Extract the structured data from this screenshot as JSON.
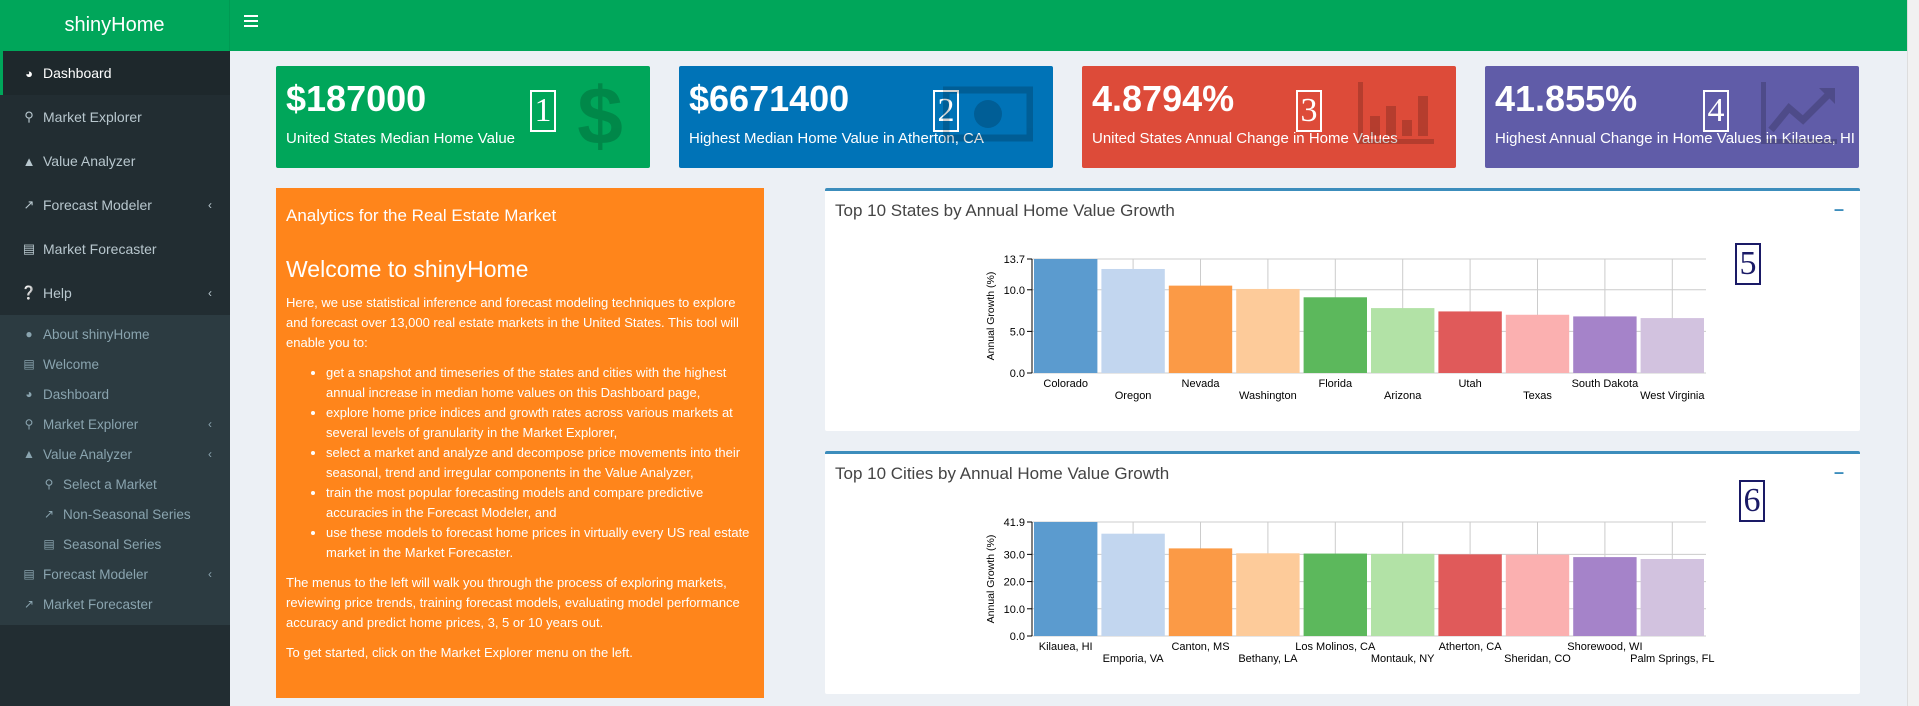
{
  "app": {
    "title": "shinyHome"
  },
  "sidebar": {
    "items": [
      {
        "label": "Dashboard",
        "icon": "dashboard-icon"
      },
      {
        "label": "Market Explorer",
        "icon": "search-icon"
      },
      {
        "label": "Value Analyzer",
        "icon": "area-chart-icon"
      },
      {
        "label": "Forecast Modeler",
        "icon": "line-chart-icon"
      },
      {
        "label": "Market Forecaster",
        "icon": "bar-chart-icon"
      },
      {
        "label": "Help",
        "icon": "question-circle-icon"
      }
    ],
    "help_items": [
      {
        "label": "About shinyHome",
        "icon": "user-icon"
      },
      {
        "label": "Welcome",
        "icon": "book-icon"
      },
      {
        "label": "Dashboard",
        "icon": "dashboard-icon"
      },
      {
        "label": "Market Explorer",
        "icon": "search-icon"
      },
      {
        "label": "Value Analyzer",
        "icon": "area-chart-icon"
      }
    ],
    "value_analyzer_items": [
      {
        "label": "Select a Market",
        "icon": "map-marker-icon"
      },
      {
        "label": "Non-Seasonal Series",
        "icon": "line-chart-icon"
      },
      {
        "label": "Seasonal Series",
        "icon": "bar-chart-icon"
      }
    ],
    "help_tail_items": [
      {
        "label": "Forecast Modeler",
        "icon": "line-chart-icon"
      },
      {
        "label": "Market Forecaster",
        "icon": "line-chart-icon"
      }
    ]
  },
  "value_boxes": [
    {
      "value": "$187000",
      "label": "United States Median Home Value",
      "color": "#00a65a",
      "icon": "dollar-icon",
      "marker": "1"
    },
    {
      "value": "$6671400",
      "label": "Highest Median Home Value in Atherton, CA",
      "color": "#0073b7",
      "icon": "money-icon",
      "marker": "2"
    },
    {
      "value": "4.8794%",
      "label": "United States Annual Change in Home Values",
      "color": "#dd4b39",
      "icon": "bar-chart-icon",
      "marker": "3"
    },
    {
      "value": "41.855%",
      "label": "Highest Annual Change in Home Values in Kilauea, HI",
      "color": "#605ca8",
      "icon": "line-chart-icon",
      "marker": "4"
    }
  ],
  "intro": {
    "box_title": "Analytics for the Real Estate Market",
    "heading": "Welcome to shinyHome",
    "paragraph1": "Here, we use statistical inference and forecast modeling techniques to explore and forecast over 13,000 real estate markets in the United States. This tool will enable you to:",
    "bullets": [
      "get a snapshot and timeseries of the states and cities with the highest annual increase in median home values on this Dashboard page,",
      "explore home price indices and growth rates across various markets at several levels of granularity in the Market Explorer,",
      "select a market and analyze and decompose price movements into their seasonal, trend and irregular components in the Value Analyzer,",
      "train the most popular forecasting models and compare predictive accuracies in the Forecast Modeler, and",
      "use these models to forecast home prices in virtually every US real estate market in the Market Forecaster."
    ],
    "paragraph2": "The menus to the left will walk you through the process of exploring markets, reviewing price trends, training forecast models, evaluating model performance accuracy and predict home prices, 3, 5 or 10 years out.",
    "paragraph3": "To get started, click on the Market Explorer menu on the left."
  },
  "charts": {
    "states": {
      "box_title": "Top 10 States by Annual Home Value Growth",
      "marker": "5"
    },
    "cities": {
      "box_title": "Top 10 Cities by Annual Home Value Growth",
      "marker": "6"
    }
  },
  "chart_data": [
    {
      "type": "bar",
      "title": "Top 10 States by Annual Home Value Growth",
      "ylabel": "Annual Growth (%)",
      "xlabel": "",
      "categories": [
        "Colorado",
        "Oregon",
        "Nevada",
        "Washington",
        "Florida",
        "Arizona",
        "Utah",
        "Texas",
        "South Dakota",
        "West Virginia"
      ],
      "values": [
        13.7,
        12.5,
        10.5,
        10.1,
        9.1,
        7.8,
        7.4,
        7.0,
        6.8,
        6.6
      ],
      "yticks": [
        "0.0",
        "5.0",
        "10.0",
        "13.7"
      ],
      "ylim": [
        0,
        13.7
      ],
      "colors": [
        "#5b9bcf",
        "#c2d6ef",
        "#fb9a46",
        "#fdcb9a",
        "#5cb85c",
        "#b2e2a6",
        "#e05a5a",
        "#fbb0b0",
        "#a583c9",
        "#d2c2df"
      ]
    },
    {
      "type": "bar",
      "title": "Top 10 Cities by Annual Home Value Growth",
      "ylabel": "Annual Growth (%)",
      "xlabel": "",
      "categories": [
        "Kilauea, HI",
        "Emporia, VA",
        "Canton, MS",
        "Bethany, LA",
        "Los Molinos, CA",
        "Montauk, NY",
        "Atherton, CA",
        "Sheridan, CO",
        "Shorewood, WI",
        "Palm Springs, FL"
      ],
      "values": [
        41.9,
        37.6,
        32.2,
        30.4,
        30.3,
        30.2,
        30.0,
        29.9,
        29.0,
        28.3
      ],
      "yticks": [
        "0.0",
        "10.0",
        "20.0",
        "30.0",
        "41.9"
      ],
      "ylim": [
        0,
        41.9
      ],
      "colors": [
        "#5b9bcf",
        "#c2d6ef",
        "#fb9a46",
        "#fdcb9a",
        "#5cb85c",
        "#b2e2a6",
        "#e05a5a",
        "#fbb0b0",
        "#a583c9",
        "#d2c2df"
      ]
    }
  ]
}
